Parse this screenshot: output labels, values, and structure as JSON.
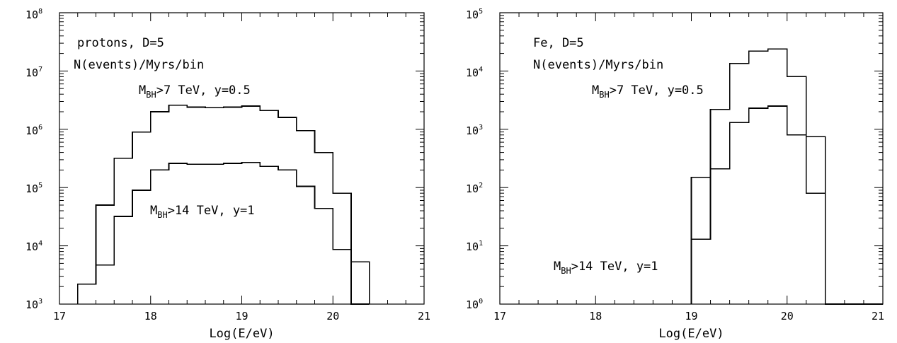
{
  "chart_data": [
    {
      "type": "histogram",
      "xlabel": "Log(E/eV)",
      "ylabel": "",
      "xlim": [
        17,
        21
      ],
      "ylim_log10": [
        3,
        8
      ],
      "y_scale": "log",
      "xticks": [
        "17",
        "18",
        "19",
        "20",
        "21"
      ],
      "yticks": [
        {
          "base": "10",
          "exp": "3"
        },
        {
          "base": "10",
          "exp": "4"
        },
        {
          "base": "10",
          "exp": "5"
        },
        {
          "base": "10",
          "exp": "6"
        },
        {
          "base": "10",
          "exp": "7"
        },
        {
          "base": "10",
          "exp": "8"
        }
      ],
      "annotations": {
        "line1": "protons, D=5",
        "line2": "N(events)/Myrs/bin",
        "upper": {
          "main": "M",
          "sub": "BH",
          "rest": ">7 TeV, y=0.5"
        },
        "lower": {
          "main": "M",
          "sub": "BH",
          "rest": ">14 TeV, y=1"
        }
      },
      "bin_edges": [
        17.2,
        17.4,
        17.6,
        17.8,
        18.0,
        18.2,
        18.4,
        18.6,
        18.8,
        19.0,
        19.2,
        19.4,
        19.6,
        19.8,
        20.0,
        20.2,
        20.4
      ],
      "series": [
        {
          "values": [
            2200,
            50000,
            320000,
            900000,
            2000000,
            2600000,
            2400000,
            2350000,
            2400000,
            2500000,
            2100000,
            1600000,
            950000,
            400000,
            80000,
            0
          ]
        },
        {
          "values": [
            2200,
            4700,
            32000,
            90000,
            200000,
            260000,
            250000,
            250000,
            260000,
            270000,
            230000,
            200000,
            105000,
            44000,
            8700,
            5300
          ]
        }
      ]
    },
    {
      "type": "histogram",
      "xlabel": "Log(E/eV)",
      "ylabel": "",
      "xlim": [
        17,
        21
      ],
      "ylim_log10": [
        0,
        5
      ],
      "y_scale": "log",
      "xticks": [
        "17",
        "18",
        "19",
        "20",
        "21"
      ],
      "yticks": [
        {
          "base": "10",
          "exp": "0"
        },
        {
          "base": "10",
          "exp": "1"
        },
        {
          "base": "10",
          "exp": "2"
        },
        {
          "base": "10",
          "exp": "3"
        },
        {
          "base": "10",
          "exp": "4"
        },
        {
          "base": "10",
          "exp": "5"
        }
      ],
      "annotations": {
        "line1": "Fe, D=5",
        "line2": "N(events)/Myrs/bin",
        "upper": {
          "main": "M",
          "sub": "BH",
          "rest": ">7 TeV, y=0.5"
        },
        "lower": {
          "main": "M",
          "sub": "BH",
          "rest": ">14 TeV, y=1"
        }
      },
      "bin_edges": [
        19.0,
        19.2,
        19.4,
        19.6,
        19.8,
        20.0,
        20.2,
        20.4
      ],
      "series": [
        {
          "values": [
            150,
            2200,
            13500,
            22000,
            24000,
            8000,
            750
          ]
        },
        {
          "values": [
            13,
            210,
            1300,
            2300,
            2500,
            800,
            80
          ]
        }
      ]
    }
  ]
}
